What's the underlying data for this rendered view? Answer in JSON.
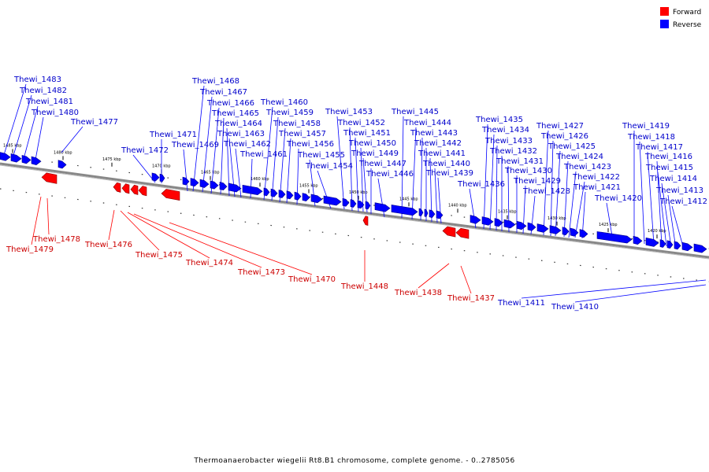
{
  "colors": {
    "forward": "#ff0000",
    "reverse": "#0000ff",
    "forward_text": "#cc0000",
    "reverse_text": "#0000cc",
    "backbone": "#888888"
  },
  "legend": {
    "forward": "Forward",
    "reverse": "Reverse"
  },
  "caption": "Thermoanaerobacter wiegelii Rt8.B1 chromosome, complete genome. - 0..2785056",
  "ticks": [
    "1485 kbp",
    "1480 kbp",
    "1475 kbp",
    "1470 kbp",
    "1465 kbp",
    "1460 kbp",
    "1455 kbp",
    "1450 kbp",
    "1445 kbp",
    "1440 kbp",
    "1435 kbp",
    "1430 kbp",
    "1425 kbp",
    "1420 kbp"
  ],
  "reverse_genes": [
    "Thewi_1483",
    "Thewi_1482",
    "Thewi_1481",
    "Thewi_1480",
    "Thewi_1477",
    "Thewi_1472",
    "Thewi_1471",
    "Thewi_1469",
    "Thewi_1468",
    "Thewi_1467",
    "Thewi_1466",
    "Thewi_1465",
    "Thewi_1464",
    "Thewi_1463",
    "Thewi_1462",
    "Thewi_1461",
    "Thewi_1460",
    "Thewi_1459",
    "Thewi_1458",
    "Thewi_1457",
    "Thewi_1456",
    "Thewi_1455",
    "Thewi_1454",
    "Thewi_1453",
    "Thewi_1452",
    "Thewi_1451",
    "Thewi_1450",
    "Thewi_1449",
    "Thewi_1447",
    "Thewi_1446",
    "Thewi_1445",
    "Thewi_1444",
    "Thewi_1443",
    "Thewi_1442",
    "Thewi_1441",
    "Thewi_1440",
    "Thewi_1439",
    "Thewi_1436",
    "Thewi_1435",
    "Thewi_1434",
    "Thewi_1433",
    "Thewi_1432",
    "Thewi_1431",
    "Thewi_1430",
    "Thewi_1429",
    "Thewi_1428",
    "Thewi_1427",
    "Thewi_1426",
    "Thewi_1425",
    "Thewi_1424",
    "Thewi_1423",
    "Thewi_1422",
    "Thewi_1421",
    "Thewi_1420",
    "Thewi_1419",
    "Thewi_1418",
    "Thewi_1417",
    "Thewi_1416",
    "Thewi_1415",
    "Thewi_1414",
    "Thewi_1413",
    "Thewi_1412",
    "Thewi_1411",
    "Thewi_1410"
  ],
  "forward_genes": [
    "Thewi_1479",
    "Thewi_1478",
    "Thewi_1476",
    "Thewi_1475",
    "Thewi_1474",
    "Thewi_1473",
    "Thewi_1470",
    "Thewi_1448",
    "Thewi_1438",
    "Thewi_1437"
  ]
}
